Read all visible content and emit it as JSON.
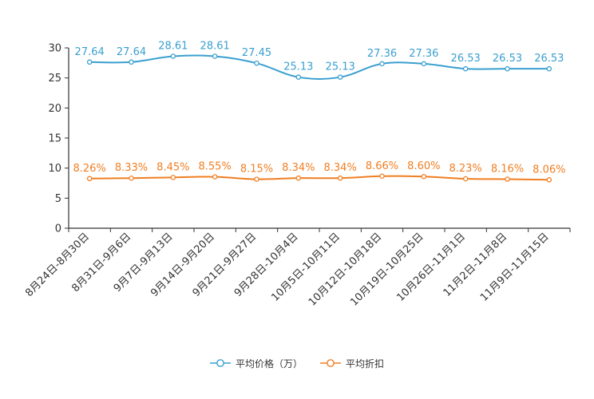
{
  "chart_data": {
    "type": "line",
    "categories": [
      "8月24日-8月30日",
      "8月31日-9月6日",
      "9月7日-9月13日",
      "9月14日-9月20日",
      "9月21日-9月27日",
      "9月28日-10月4日",
      "10月5日-10月11日",
      "10月12日-10月18日",
      "10月19日-10月25日",
      "10月26日-11月1日",
      "11月2日-11月8日",
      "11月9日-11月15日"
    ],
    "series": [
      {
        "name": "平均价格（万）",
        "color": "#3a9fd0",
        "values": [
          27.64,
          27.64,
          28.61,
          28.61,
          27.45,
          25.13,
          25.13,
          27.36,
          27.36,
          26.53,
          26.53,
          26.53
        ],
        "labels": [
          "27.64",
          "27.64",
          "28.61",
          "28.61",
          "27.45",
          "25.13",
          "25.13",
          "27.36",
          "27.36",
          "26.53",
          "26.53",
          "26.53"
        ]
      },
      {
        "name": "平均折扣",
        "color": "#f07e22",
        "values": [
          8.26,
          8.33,
          8.45,
          8.55,
          8.15,
          8.34,
          8.34,
          8.66,
          8.6,
          8.23,
          8.16,
          8.06
        ],
        "labels": [
          "8.26%",
          "8.33%",
          "8.45%",
          "8.55%",
          "8.15%",
          "8.34%",
          "8.34%",
          "8.66%",
          "8.60%",
          "8.23%",
          "8.16%",
          "8.06%"
        ]
      }
    ],
    "yticks": [
      "0",
      "5",
      "10",
      "15",
      "20",
      "25",
      "30"
    ],
    "ylim": [
      0,
      30
    ],
    "title": "",
    "xlabel": "",
    "ylabel": "",
    "legend_position": "bottom-center",
    "grid": false
  }
}
